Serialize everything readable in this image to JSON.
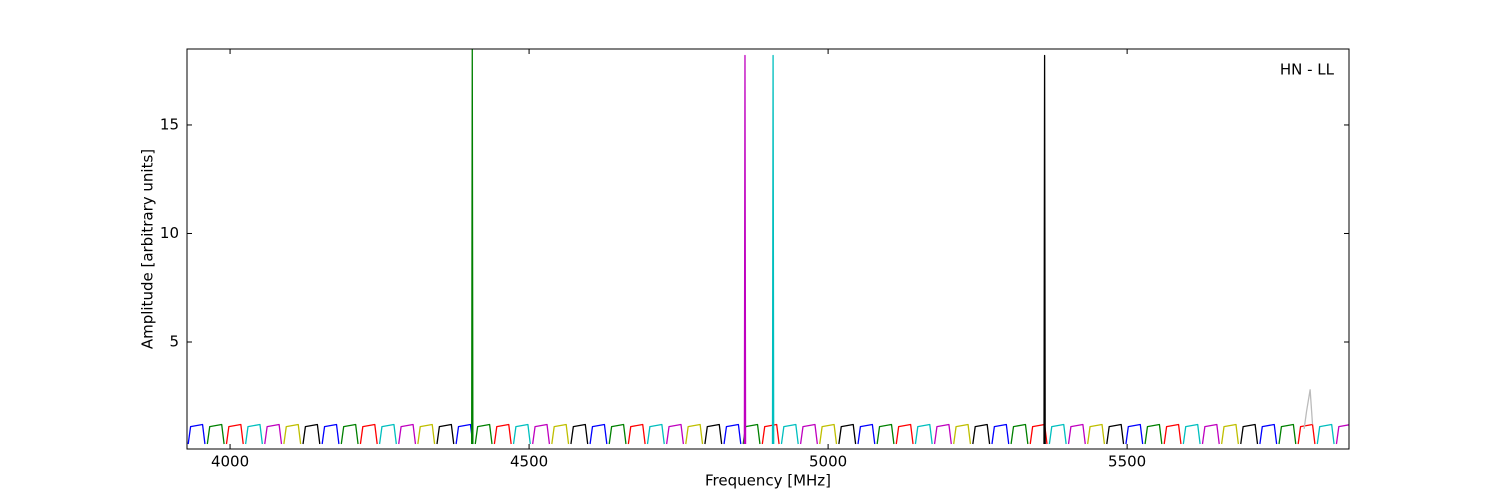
{
  "chart_data": {
    "type": "line",
    "xlabel": "Frequency [MHz]",
    "ylabel": "Amplitude [arbitrary units]",
    "annotation": "HN - LL",
    "xlim": [
      3928,
      5871
    ],
    "ylim": [
      0.07,
      18.5
    ],
    "xticks": [
      4000,
      4500,
      5000,
      5500
    ],
    "yticks": [
      5,
      10,
      15
    ],
    "series": [
      {
        "color": "#0000ff",
        "x": [
          3930,
          3934,
          3954,
          3958,
          3959,
          4154,
          4158,
          4178,
          4182,
          4183,
          4378,
          4382,
          4402,
          4406,
          4407,
          4602,
          4606,
          4626,
          4630,
          4631,
          4826,
          4830,
          4850,
          4854,
          4855,
          5050,
          5054,
          5074,
          5078,
          5079,
          5274,
          5278,
          5298,
          5302,
          5303,
          5498,
          5502,
          5522,
          5526,
          5527,
          5722,
          5726,
          5746,
          5750,
          5751
        ],
        "values": [
          0.3,
          1.1,
          1.2,
          0.3,
          null,
          0.3,
          1.1,
          1.2,
          0.3,
          null,
          0.3,
          1.1,
          1.2,
          0.3,
          null,
          0.3,
          1.1,
          1.2,
          0.3,
          null,
          0.3,
          1.1,
          1.2,
          0.3,
          null,
          0.3,
          1.1,
          1.2,
          0.3,
          null,
          0.3,
          1.1,
          1.2,
          0.3,
          null,
          0.3,
          1.1,
          1.2,
          0.3,
          null,
          0.3,
          1.1,
          1.2,
          0.3,
          null
        ]
      },
      {
        "color": "#008000",
        "x": [
          3962,
          3966,
          3986,
          3990,
          3991,
          4186,
          4190,
          4210,
          4214,
          4215,
          4404,
          4405,
          4406,
          4407,
          4410,
          4414,
          4434,
          4438,
          4439,
          4634,
          4638,
          4658,
          4662,
          4663,
          4858,
          4862,
          4882,
          4886,
          4887,
          5082,
          5086,
          5106,
          5110,
          5111,
          5306,
          5310,
          5330,
          5334,
          5335,
          5530,
          5534,
          5554,
          5558,
          5559,
          5754,
          5758,
          5778,
          5782,
          5783
        ],
        "values": [
          0.3,
          1.1,
          1.2,
          0.3,
          null,
          0.3,
          1.1,
          1.2,
          0.3,
          null,
          0.3,
          18.5,
          0.3,
          null,
          0.3,
          1.1,
          1.2,
          0.3,
          null,
          0.3,
          1.1,
          1.2,
          0.3,
          null,
          0.3,
          1.1,
          1.2,
          0.3,
          null,
          0.3,
          1.1,
          1.2,
          0.3,
          null,
          0.3,
          1.1,
          1.2,
          0.3,
          null,
          0.3,
          1.1,
          1.2,
          0.3,
          null,
          0.3,
          1.1,
          1.2,
          0.3,
          null
        ]
      },
      {
        "color": "#ff0000",
        "x": [
          3994,
          3998,
          4018,
          4022,
          4023,
          4218,
          4222,
          4242,
          4246,
          4247,
          4442,
          4446,
          4466,
          4470,
          4471,
          4666,
          4670,
          4690,
          4694,
          4695,
          4890,
          4894,
          4914,
          4918,
          4919,
          5114,
          5118,
          5138,
          5142,
          5143,
          5338,
          5342,
          5362,
          5366,
          5367,
          5562,
          5566,
          5586,
          5590,
          5591,
          5786,
          5790,
          5810,
          5814,
          5815
        ],
        "values": [
          0.3,
          1.1,
          1.2,
          0.3,
          null,
          0.3,
          1.1,
          1.2,
          0.3,
          null,
          0.3,
          1.1,
          1.2,
          0.3,
          null,
          0.3,
          1.1,
          1.2,
          0.3,
          null,
          0.3,
          1.1,
          1.2,
          0.3,
          null,
          0.3,
          1.1,
          1.2,
          0.3,
          null,
          0.3,
          1.1,
          1.2,
          0.3,
          null,
          0.3,
          1.1,
          1.2,
          0.3,
          null,
          0.3,
          1.1,
          1.2,
          0.3,
          null
        ]
      },
      {
        "color": "#00bfbf",
        "x": [
          4026,
          4030,
          4050,
          4054,
          4055,
          4250,
          4254,
          4274,
          4278,
          4279,
          4474,
          4478,
          4498,
          4502,
          4503,
          4698,
          4702,
          4722,
          4726,
          4727,
          4907,
          4908,
          4909,
          4910,
          4922,
          4926,
          4946,
          4950,
          4951,
          5146,
          5150,
          5170,
          5174,
          5175,
          5370,
          5374,
          5394,
          5398,
          5399,
          5594,
          5598,
          5618,
          5622,
          5623,
          5818,
          5822,
          5842,
          5846,
          5847
        ],
        "values": [
          0.3,
          1.1,
          1.2,
          0.3,
          null,
          0.3,
          1.1,
          1.2,
          0.3,
          null,
          0.3,
          1.1,
          1.2,
          0.3,
          null,
          0.3,
          1.1,
          1.2,
          0.3,
          null,
          0.3,
          18.2,
          0.3,
          null,
          0.3,
          1.1,
          1.2,
          0.3,
          null,
          0.3,
          1.1,
          1.2,
          0.3,
          null,
          0.3,
          1.1,
          1.2,
          0.3,
          null,
          0.3,
          1.1,
          1.2,
          0.3,
          null,
          0.3,
          1.1,
          1.2,
          0.3,
          null
        ]
      },
      {
        "color": "#bf00bf",
        "x": [
          4058,
          4062,
          4082,
          4086,
          4087,
          4282,
          4286,
          4306,
          4310,
          4311,
          4506,
          4510,
          4530,
          4534,
          4535,
          4730,
          4734,
          4754,
          4758,
          4759,
          4860,
          4861,
          4862,
          4863,
          4954,
          4958,
          4978,
          4982,
          4983,
          5178,
          5182,
          5202,
          5206,
          5207,
          5402,
          5406,
          5426,
          5430,
          5431,
          5626,
          5630,
          5650,
          5654,
          5655,
          5850,
          5854,
          5874,
          5878,
          5879
        ],
        "values": [
          0.3,
          1.1,
          1.2,
          0.3,
          null,
          0.3,
          1.1,
          1.2,
          0.3,
          null,
          0.3,
          1.1,
          1.2,
          0.3,
          null,
          0.3,
          1.1,
          1.2,
          0.3,
          null,
          0.3,
          18.2,
          0.3,
          null,
          0.3,
          1.1,
          1.2,
          0.3,
          null,
          0.3,
          1.1,
          1.2,
          0.3,
          null,
          0.3,
          1.1,
          1.2,
          0.3,
          null,
          0.3,
          1.1,
          1.2,
          0.3,
          null,
          0.3,
          1.1,
          1.2,
          0.3,
          null
        ]
      },
      {
        "color": "#bfbf00",
        "x": [
          4090,
          4094,
          4114,
          4118,
          4119,
          4314,
          4318,
          4338,
          4342,
          4343,
          4538,
          4542,
          4562,
          4566,
          4567,
          4762,
          4766,
          4786,
          4790,
          4791,
          4986,
          4990,
          5010,
          5014,
          5015,
          5210,
          5214,
          5234,
          5238,
          5239,
          5434,
          5438,
          5458,
          5462,
          5463,
          5658,
          5662,
          5682,
          5686,
          5687
        ],
        "values": [
          0.3,
          1.1,
          1.2,
          0.3,
          null,
          0.3,
          1.1,
          1.2,
          0.3,
          null,
          0.3,
          1.1,
          1.2,
          0.3,
          null,
          0.3,
          1.1,
          1.2,
          0.3,
          null,
          0.3,
          1.1,
          1.2,
          0.3,
          null,
          0.3,
          1.1,
          1.2,
          0.3,
          null,
          0.3,
          1.1,
          1.2,
          0.3,
          null,
          0.3,
          1.1,
          1.2,
          0.3,
          null
        ]
      },
      {
        "color": "#000000",
        "x": [
          4122,
          4126,
          4146,
          4150,
          4151,
          4346,
          4350,
          4370,
          4374,
          4375,
          4570,
          4574,
          4594,
          4598,
          4599,
          4794,
          4798,
          4818,
          4822,
          4823,
          5018,
          5022,
          5042,
          5046,
          5047,
          5242,
          5246,
          5266,
          5270,
          5271,
          5361,
          5362,
          5363,
          5364,
          5466,
          5470,
          5490,
          5494,
          5495,
          5690,
          5694,
          5714,
          5718,
          5719
        ],
        "values": [
          0.3,
          1.1,
          1.2,
          0.3,
          null,
          0.3,
          1.1,
          1.2,
          0.3,
          null,
          0.3,
          1.1,
          1.2,
          0.3,
          null,
          0.3,
          1.1,
          1.2,
          0.3,
          null,
          0.3,
          1.1,
          1.2,
          0.3,
          null,
          0.3,
          1.1,
          1.2,
          0.3,
          null,
          0.3,
          18.2,
          0.3,
          null,
          0.3,
          1.1,
          1.2,
          0.3,
          null,
          0.3,
          1.1,
          1.2,
          0.3,
          null
        ]
      },
      {
        "color": "#bbbbbb",
        "x": [
          5796,
          5800,
          5806,
          5810
        ],
        "values": [
          1.0,
          1.8,
          2.8,
          1.2
        ]
      }
    ]
  }
}
